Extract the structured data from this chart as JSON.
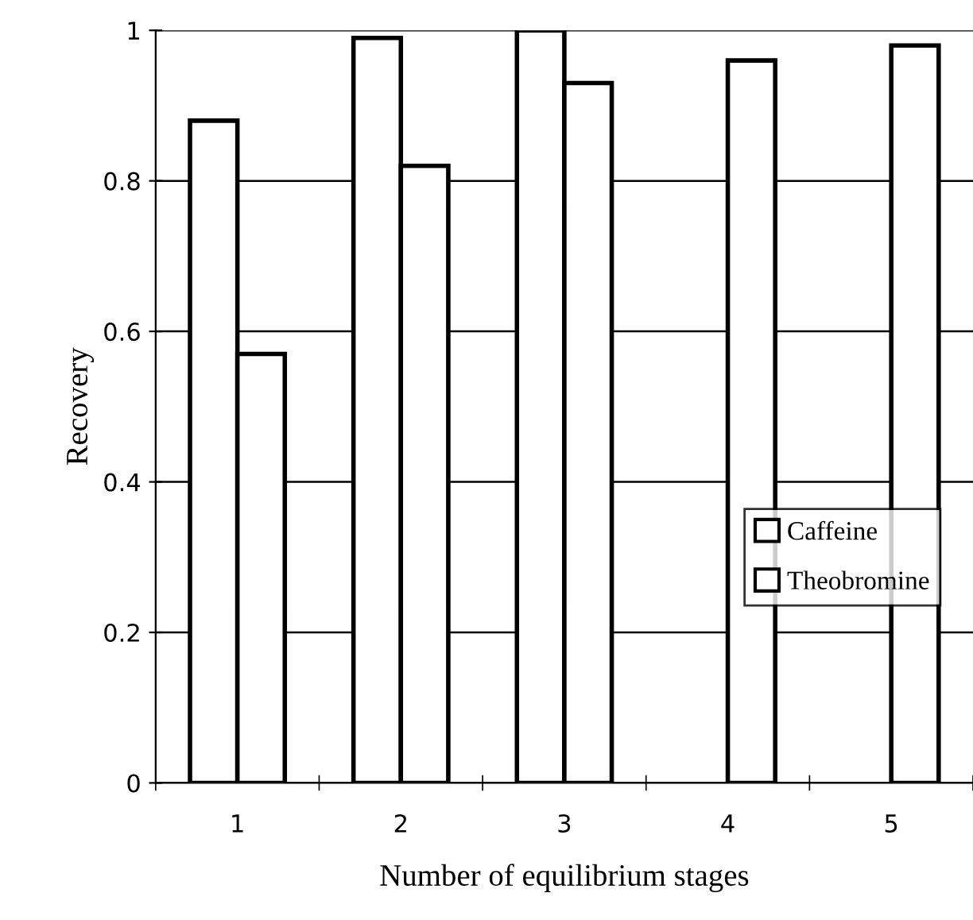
{
  "chart_data": {
    "type": "bar",
    "xlabel": "Number of equilibrium stages",
    "ylabel": "Recovery",
    "categories": [
      "1",
      "2",
      "3",
      "4",
      "5"
    ],
    "series": [
      {
        "name": "Caffeine",
        "color": "#ffffff",
        "values": [
          0.88,
          0.99,
          1.0,
          null,
          null
        ]
      },
      {
        "name": "Theobromine",
        "color": "#ffffff",
        "values": [
          0.57,
          0.82,
          0.93,
          0.96,
          0.98
        ]
      }
    ],
    "ylim": [
      0,
      1
    ],
    "yticks": [
      0,
      0.2,
      0.4,
      0.6,
      0.8,
      1
    ],
    "grid": "y",
    "legend": "right"
  }
}
